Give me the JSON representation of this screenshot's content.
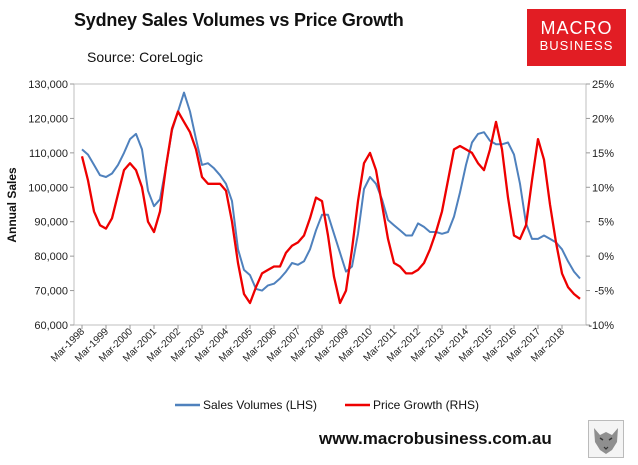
{
  "header": {
    "title": "Sydney Sales Volumes vs Price Growth",
    "source": "Source: CoreLogic"
  },
  "logo": {
    "top": "MACRO",
    "bottom": "BUSINESS"
  },
  "footer": {
    "site": "www.macrobusiness.com.au"
  },
  "colors": {
    "sales": "#4f81bd",
    "price": "#ee0000",
    "logo_bg": "#e21d24"
  },
  "chart_data": {
    "type": "line",
    "title": "Sydney Sales Volumes vs Price Growth",
    "ylabel": "Annual Sales",
    "y2label": "",
    "ylim": [
      60000,
      130000
    ],
    "y2lim": [
      -10,
      25
    ],
    "y_ticks": [
      "60,000",
      "70,000",
      "80,000",
      "90,000",
      "100,000",
      "110,000",
      "120,000",
      "130,000"
    ],
    "y2_ticks": [
      "-10%",
      "-5%",
      "0%",
      "5%",
      "10%",
      "15%",
      "20%",
      "25%"
    ],
    "x_ticks": [
      "Mar-1998",
      "Mar-1999",
      "Mar-2000",
      "Mar-2001",
      "Mar-2002",
      "Mar-2003",
      "Mar-2004",
      "Mar-2005",
      "Mar-2006",
      "Mar-2007",
      "Mar-2008",
      "Mar-2009",
      "Mar-2010",
      "Mar-2011",
      "Mar-2012",
      "Mar-2013",
      "Mar-2014",
      "Mar-2015",
      "Mar-2016",
      "Mar-2017",
      "Mar-2018"
    ],
    "grid": false,
    "legend": "bottom",
    "series": [
      {
        "name": "Sales Volumes (LHS)",
        "axis": "left",
        "points": [
          [
            "1998-03",
            111000
          ],
          [
            "1998-06",
            109500
          ],
          [
            "1998-09",
            106500
          ],
          [
            "1998-12",
            103500
          ],
          [
            "1999-03",
            103000
          ],
          [
            "1999-06",
            104000
          ],
          [
            "1999-09",
            106500
          ],
          [
            "1999-12",
            110000
          ],
          [
            "2000-03",
            114000
          ],
          [
            "2000-06",
            115500
          ],
          [
            "2000-09",
            111000
          ],
          [
            "2000-12",
            99000
          ],
          [
            "2001-03",
            94500
          ],
          [
            "2001-06",
            96500
          ],
          [
            "2001-09",
            106000
          ],
          [
            "2001-12",
            116500
          ],
          [
            "2002-03",
            122000
          ],
          [
            "2002-06",
            127500
          ],
          [
            "2002-09",
            122000
          ],
          [
            "2002-12",
            114000
          ],
          [
            "2003-03",
            106500
          ],
          [
            "2003-06",
            107000
          ],
          [
            "2003-09",
            105500
          ],
          [
            "2003-12",
            103500
          ],
          [
            "2004-03",
            101000
          ],
          [
            "2004-06",
            96000
          ],
          [
            "2004-09",
            82000
          ],
          [
            "2004-12",
            76000
          ],
          [
            "2005-03",
            74500
          ],
          [
            "2005-06",
            70500
          ],
          [
            "2005-09",
            70000
          ],
          [
            "2005-12",
            71500
          ],
          [
            "2006-03",
            72000
          ],
          [
            "2006-06",
            73500
          ],
          [
            "2006-09",
            75500
          ],
          [
            "2006-12",
            78000
          ],
          [
            "2007-03",
            77500
          ],
          [
            "2007-06",
            78500
          ],
          [
            "2007-09",
            82000
          ],
          [
            "2007-12",
            87500
          ],
          [
            "2008-03",
            92000
          ],
          [
            "2008-06",
            92000
          ],
          [
            "2008-09",
            86500
          ],
          [
            "2008-12",
            81000
          ],
          [
            "2009-03",
            75500
          ],
          [
            "2009-06",
            77000
          ],
          [
            "2009-09",
            86500
          ],
          [
            "2009-12",
            99500
          ],
          [
            "2010-03",
            103000
          ],
          [
            "2010-06",
            101000
          ],
          [
            "2010-09",
            96500
          ],
          [
            "2010-12",
            90500
          ],
          [
            "2011-03",
            89000
          ],
          [
            "2011-06",
            87500
          ],
          [
            "2011-09",
            86000
          ],
          [
            "2011-12",
            86000
          ],
          [
            "2012-03",
            89500
          ],
          [
            "2012-06",
            88500
          ],
          [
            "2012-09",
            87000
          ],
          [
            "2012-12",
            87000
          ],
          [
            "2013-03",
            86500
          ],
          [
            "2013-06",
            87000
          ],
          [
            "2013-09",
            91500
          ],
          [
            "2013-12",
            98500
          ],
          [
            "2014-03",
            106500
          ],
          [
            "2014-06",
            113000
          ],
          [
            "2014-09",
            115500
          ],
          [
            "2014-12",
            116000
          ],
          [
            "2015-03",
            113500
          ],
          [
            "2015-06",
            112500
          ],
          [
            "2015-09",
            112500
          ],
          [
            "2015-12",
            113000
          ],
          [
            "2016-03",
            109500
          ],
          [
            "2016-06",
            101000
          ],
          [
            "2016-09",
            89500
          ],
          [
            "2016-12",
            85000
          ],
          [
            "2017-03",
            85000
          ],
          [
            "2017-06",
            86000
          ],
          [
            "2017-09",
            85000
          ],
          [
            "2017-12",
            84000
          ],
          [
            "2018-03",
            82000
          ],
          [
            "2018-06",
            78500
          ],
          [
            "2018-09",
            75500
          ],
          [
            "2018-12",
            73500
          ]
        ]
      },
      {
        "name": "Price Growth (RHS)",
        "axis": "right",
        "points": [
          [
            "1998-03",
            14.5
          ],
          [
            "1998-06",
            11.0
          ],
          [
            "1998-09",
            6.5
          ],
          [
            "1998-12",
            4.5
          ],
          [
            "1999-03",
            4.0
          ],
          [
            "1999-06",
            5.5
          ],
          [
            "1999-09",
            9.0
          ],
          [
            "1999-12",
            12.5
          ],
          [
            "2000-03",
            13.5
          ],
          [
            "2000-06",
            12.5
          ],
          [
            "2000-09",
            10.0
          ],
          [
            "2000-12",
            5.0
          ],
          [
            "2001-03",
            3.5
          ],
          [
            "2001-06",
            6.5
          ],
          [
            "2001-09",
            13.0
          ],
          [
            "2001-12",
            18.5
          ],
          [
            "2002-03",
            21.0
          ],
          [
            "2002-06",
            19.5
          ],
          [
            "2002-09",
            18.0
          ],
          [
            "2002-12",
            15.5
          ],
          [
            "2003-03",
            11.5
          ],
          [
            "2003-06",
            10.5
          ],
          [
            "2003-09",
            10.5
          ],
          [
            "2003-12",
            10.5
          ],
          [
            "2004-03",
            9.5
          ],
          [
            "2004-06",
            5.0
          ],
          [
            "2004-09",
            -1.0
          ],
          [
            "2004-12",
            -5.5
          ],
          [
            "2005-03",
            -6.8
          ],
          [
            "2005-06",
            -4.5
          ],
          [
            "2005-09",
            -2.5
          ],
          [
            "2005-12",
            -2.0
          ],
          [
            "2006-03",
            -1.5
          ],
          [
            "2006-06",
            -1.5
          ],
          [
            "2006-09",
            0.5
          ],
          [
            "2006-12",
            1.5
          ],
          [
            "2007-03",
            2.0
          ],
          [
            "2007-06",
            3.0
          ],
          [
            "2007-09",
            5.5
          ],
          [
            "2007-12",
            8.5
          ],
          [
            "2008-03",
            8.0
          ],
          [
            "2008-06",
            3.0
          ],
          [
            "2008-09",
            -3.0
          ],
          [
            "2008-12",
            -6.8
          ],
          [
            "2009-03",
            -5.0
          ],
          [
            "2009-06",
            1.0
          ],
          [
            "2009-09",
            8.0
          ],
          [
            "2009-12",
            13.5
          ],
          [
            "2010-03",
            15.0
          ],
          [
            "2010-06",
            12.5
          ],
          [
            "2010-09",
            7.5
          ],
          [
            "2010-12",
            2.5
          ],
          [
            "2011-03",
            -1.0
          ],
          [
            "2011-06",
            -1.5
          ],
          [
            "2011-09",
            -2.5
          ],
          [
            "2011-12",
            -2.5
          ],
          [
            "2012-03",
            -2.0
          ],
          [
            "2012-06",
            -1.0
          ],
          [
            "2012-09",
            1.0
          ],
          [
            "2012-12",
            3.5
          ],
          [
            "2013-03",
            6.5
          ],
          [
            "2013-06",
            11.0
          ],
          [
            "2013-09",
            15.5
          ],
          [
            "2013-12",
            16.0
          ],
          [
            "2014-03",
            15.5
          ],
          [
            "2014-06",
            15.0
          ],
          [
            "2014-09",
            13.5
          ],
          [
            "2014-12",
            12.5
          ],
          [
            "2015-03",
            15.5
          ],
          [
            "2015-06",
            19.5
          ],
          [
            "2015-09",
            15.5
          ],
          [
            "2015-12",
            8.5
          ],
          [
            "2016-03",
            3.0
          ],
          [
            "2016-06",
            2.5
          ],
          [
            "2016-09",
            4.5
          ],
          [
            "2016-12",
            11.0
          ],
          [
            "2017-03",
            17.0
          ],
          [
            "2017-06",
            14.0
          ],
          [
            "2017-09",
            7.5
          ],
          [
            "2017-12",
            2.0
          ],
          [
            "2018-03",
            -2.5
          ],
          [
            "2018-06",
            -4.5
          ],
          [
            "2018-09",
            -5.5
          ],
          [
            "2018-12",
            -6.2
          ]
        ]
      }
    ]
  }
}
